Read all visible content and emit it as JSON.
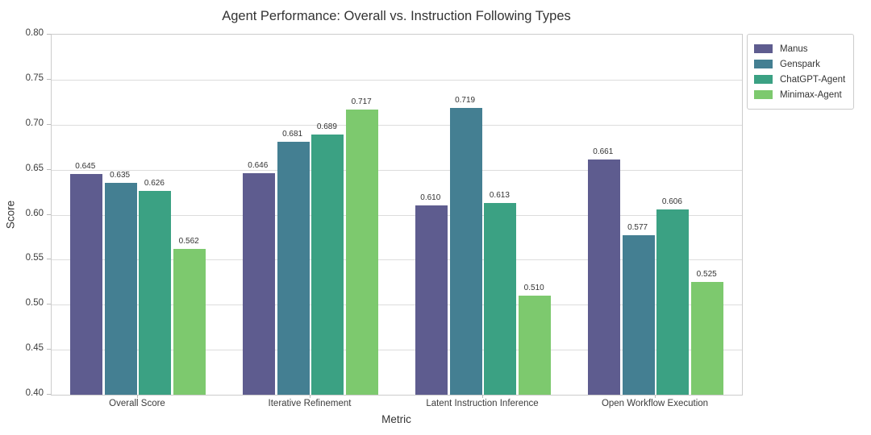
{
  "chart_data": {
    "type": "bar",
    "title": "Agent Performance: Overall vs. Instruction Following Types",
    "xlabel": "Metric",
    "ylabel": "Score",
    "ylim": [
      0.4,
      0.8
    ],
    "yticks": [
      0.8,
      0.75,
      0.7,
      0.65,
      0.6,
      0.55,
      0.5,
      0.45,
      0.4
    ],
    "grid": true,
    "legend_position": "outside-upper-right",
    "categories": [
      "Overall Score",
      "Iterative Refinement",
      "Latent Instruction Inference",
      "Open Workflow Execution"
    ],
    "series": [
      {
        "name": "Manus",
        "color": "#5e5c8f",
        "values": [
          0.645,
          0.646,
          0.61,
          0.661
        ]
      },
      {
        "name": "Genspark",
        "color": "#447f92",
        "values": [
          0.635,
          0.681,
          0.719,
          0.577
        ]
      },
      {
        "name": "ChatGPT-Agent",
        "color": "#3ba183",
        "values": [
          0.626,
          0.689,
          0.613,
          0.606
        ]
      },
      {
        "name": "Minimax-Agent",
        "color": "#7dc96e",
        "values": [
          0.562,
          0.717,
          0.51,
          0.525
        ]
      }
    ],
    "colors": {
      "grid": "#dddddd",
      "spine": "#cccccc",
      "tick_mark": "#bbbbbb",
      "text": "#333333"
    }
  }
}
